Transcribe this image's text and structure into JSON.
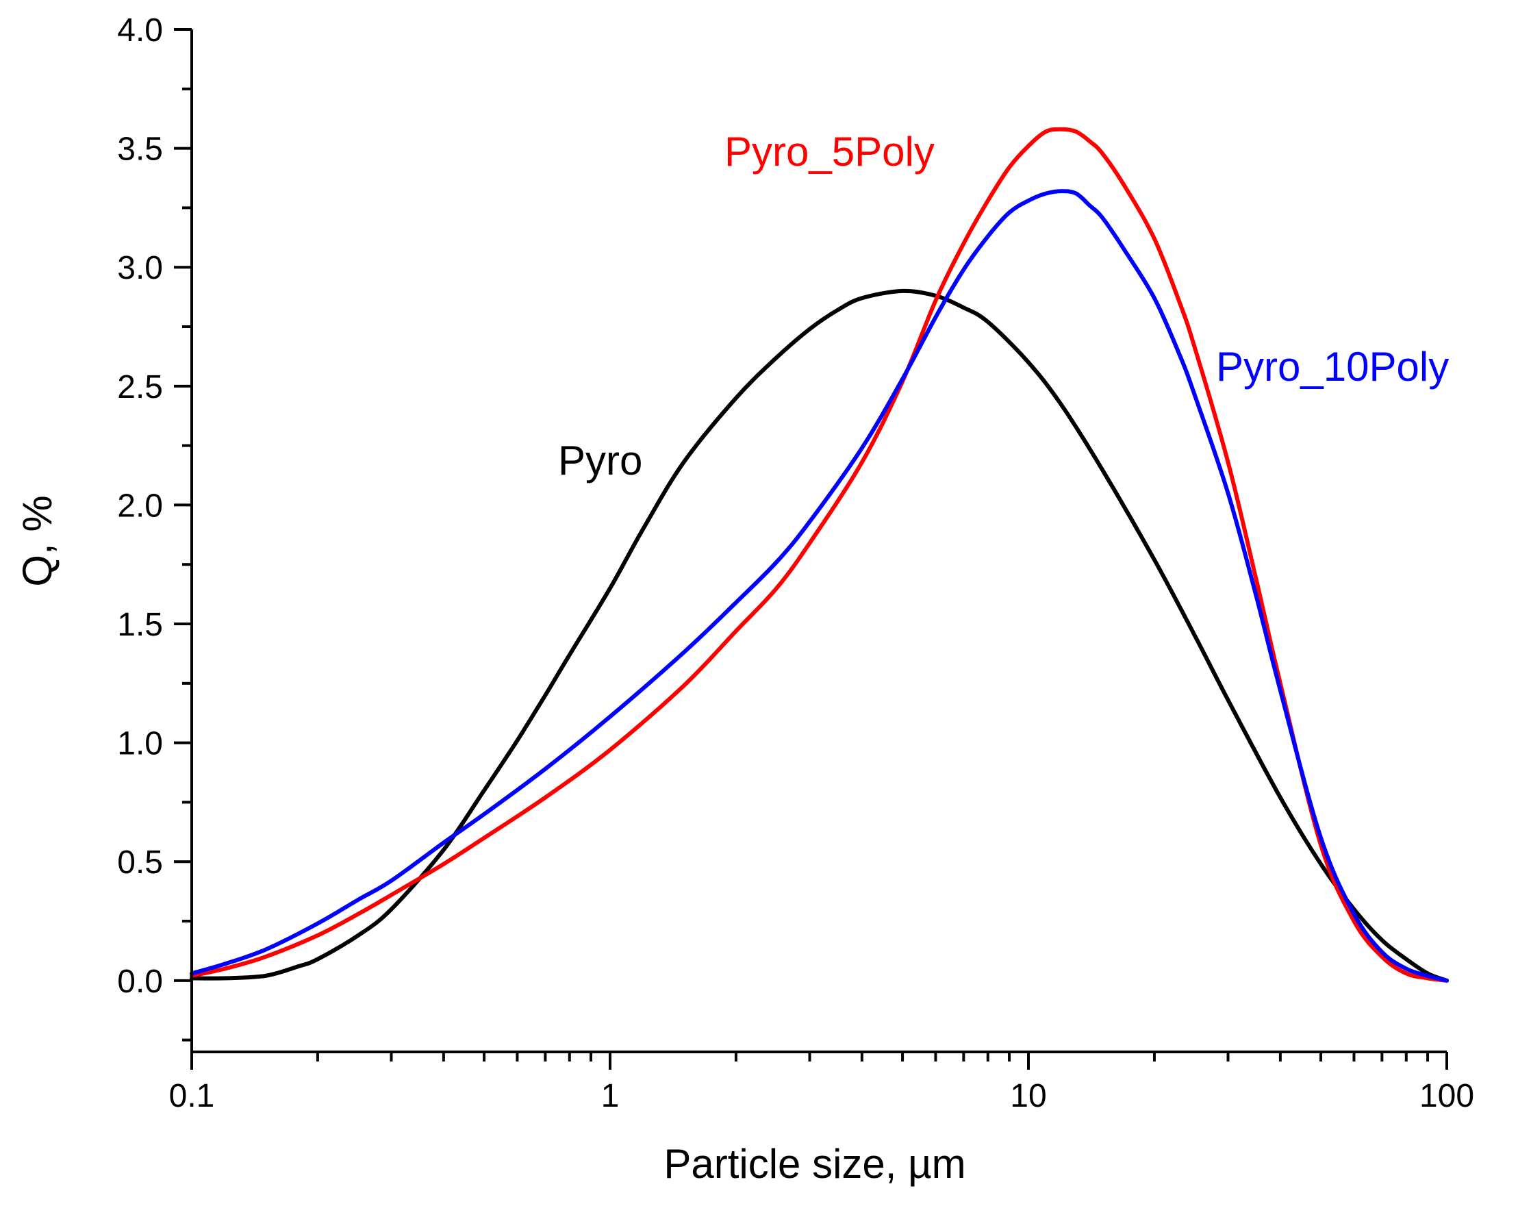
{
  "chart_data": {
    "type": "line",
    "xlabel": "Particle size, µm",
    "ylabel": "Q, %",
    "xscale": "log",
    "xlim": [
      0.1,
      100
    ],
    "ylim": [
      -0.3,
      4.0
    ],
    "grid": false,
    "legend": "inline labels next to curves",
    "x_ticks": [
      {
        "value": 0.1,
        "label": "0.1"
      },
      {
        "value": 1,
        "label": "1"
      },
      {
        "value": 10,
        "label": "10"
      },
      {
        "value": 100,
        "label": "100"
      }
    ],
    "y_ticks": [
      {
        "value": 0.0,
        "label": "0.0"
      },
      {
        "value": 0.5,
        "label": "0.5"
      },
      {
        "value": 1.0,
        "label": "1.0"
      },
      {
        "value": 1.5,
        "label": "1.5"
      },
      {
        "value": 2.0,
        "label": "2.0"
      },
      {
        "value": 2.5,
        "label": "2.5"
      },
      {
        "value": 3.0,
        "label": "3.0"
      },
      {
        "value": 3.5,
        "label": "3.5"
      },
      {
        "value": 4.0,
        "label": "4.0"
      }
    ],
    "series": [
      {
        "name": "Pyro",
        "color": "#000000",
        "x": [
          0.1,
          0.12,
          0.15,
          0.18,
          0.2,
          0.25,
          0.3,
          0.4,
          0.5,
          0.6,
          0.7,
          0.8,
          1,
          1.2,
          1.5,
          2,
          2.5,
          3,
          3.5,
          4,
          5,
          6,
          7,
          8,
          10,
          12,
          15,
          20,
          25,
          30,
          40,
          50,
          60,
          70,
          80,
          90,
          100
        ],
        "y": [
          0.01,
          0.01,
          0.02,
          0.06,
          0.09,
          0.19,
          0.3,
          0.55,
          0.8,
          1.01,
          1.2,
          1.37,
          1.65,
          1.9,
          2.18,
          2.45,
          2.62,
          2.74,
          2.82,
          2.87,
          2.9,
          2.88,
          2.83,
          2.77,
          2.6,
          2.42,
          2.15,
          1.77,
          1.45,
          1.18,
          0.77,
          0.49,
          0.3,
          0.17,
          0.09,
          0.03,
          0.0
        ]
      },
      {
        "name": "Pyro_5Poly",
        "color": "#ff0000",
        "x": [
          0.1,
          0.12,
          0.15,
          0.2,
          0.25,
          0.3,
          0.4,
          0.5,
          0.7,
          1,
          1.5,
          2,
          2.5,
          3,
          4,
          5,
          6,
          7,
          8,
          9,
          10,
          11,
          12,
          13,
          14,
          15,
          17,
          20,
          23,
          25,
          30,
          35,
          40,
          50,
          60,
          70,
          80,
          90,
          100
        ],
        "y": [
          0.02,
          0.05,
          0.1,
          0.19,
          0.28,
          0.36,
          0.49,
          0.6,
          0.77,
          0.97,
          1.24,
          1.47,
          1.65,
          1.84,
          2.18,
          2.52,
          2.86,
          3.1,
          3.28,
          3.42,
          3.51,
          3.57,
          3.58,
          3.57,
          3.53,
          3.48,
          3.34,
          3.12,
          2.85,
          2.66,
          2.18,
          1.69,
          1.25,
          0.57,
          0.25,
          0.1,
          0.03,
          0.01,
          0.0
        ]
      },
      {
        "name": "Pyro_10Poly",
        "color": "#0000ff",
        "x": [
          0.1,
          0.12,
          0.15,
          0.2,
          0.25,
          0.3,
          0.4,
          0.5,
          0.7,
          1,
          1.5,
          2,
          2.5,
          3,
          4,
          5,
          6,
          7,
          8,
          9,
          10,
          11,
          12,
          13,
          14,
          15,
          17,
          20,
          23,
          25,
          30,
          35,
          40,
          50,
          60,
          70,
          80,
          90,
          100
        ],
        "y": [
          0.03,
          0.07,
          0.13,
          0.24,
          0.34,
          0.42,
          0.58,
          0.7,
          0.89,
          1.11,
          1.38,
          1.59,
          1.76,
          1.93,
          2.24,
          2.53,
          2.79,
          2.99,
          3.13,
          3.23,
          3.28,
          3.31,
          3.32,
          3.31,
          3.26,
          3.21,
          3.07,
          2.87,
          2.63,
          2.46,
          2.05,
          1.62,
          1.22,
          0.6,
          0.28,
          0.12,
          0.05,
          0.02,
          0.0
        ]
      }
    ]
  }
}
